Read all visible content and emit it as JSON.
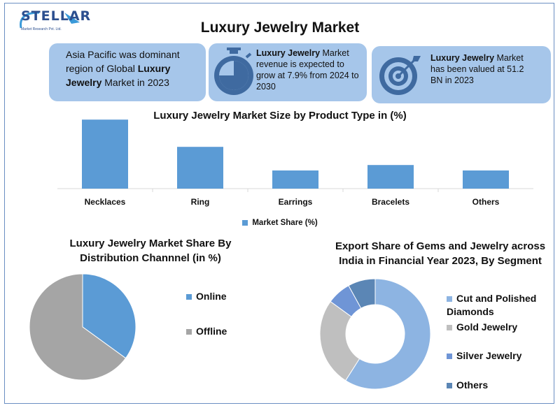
{
  "logo": {
    "name": "STELLAR",
    "sub": "Market Research Pvt. Ltd."
  },
  "title": "Luxury Jewelry Market",
  "info": {
    "box1": {
      "pre": "Asia Pacific was dominant region of Global ",
      "bold": "Luxury Jewelry",
      "post": " Market in 2023"
    },
    "box2": {
      "bold": "Luxury Jewelry",
      "post": " Market revenue is expected to grow at 7.9% from 2024 to 2030",
      "icon": "stopwatch-icon"
    },
    "box3": {
      "bold": "Luxury Jewelry",
      "post": " Market has been valued at 51.2 BN in 2023",
      "icon": "target-icon"
    }
  },
  "colors": {
    "bar": "#5b9bd5",
    "box": "#a6c6ea",
    "online": "#5b9bd5",
    "offline": "#a5a5a5"
  },
  "chart_data": [
    {
      "type": "bar",
      "title": "Luxury Jewelry Market Size by Product Type in (%)",
      "categories": [
        "Necklaces",
        "Ring",
        "Earrings",
        "Bracelets",
        "Others"
      ],
      "series": [
        {
          "name": "Market Share (%)",
          "values": [
            38,
            23,
            10,
            13,
            10
          ]
        }
      ],
      "ylim": [
        0,
        40
      ],
      "grid": false,
      "legend": "bottom"
    },
    {
      "type": "pie",
      "title": "Luxury Jewelry Market Share By Distribution Channnel (in %)",
      "labels": [
        "Online",
        "Offline"
      ],
      "values": [
        35,
        65
      ],
      "colors": [
        "#5b9bd5",
        "#a5a5a5"
      ],
      "legend": "right"
    },
    {
      "type": "pie",
      "title": "Export Share of Gems and Jewelry across India in Financial Year 2023, By Segment",
      "labels": [
        "Cut and Polished Diamonds",
        "Gold Jewelry",
        "Silver Jewelry",
        "Others"
      ],
      "values": [
        59,
        26,
        7,
        8
      ],
      "colors": [
        "#8db4e2",
        "#bfbfbf",
        "#6f95d6",
        "#5b86b5"
      ],
      "donut": true,
      "legend": "right"
    }
  ]
}
